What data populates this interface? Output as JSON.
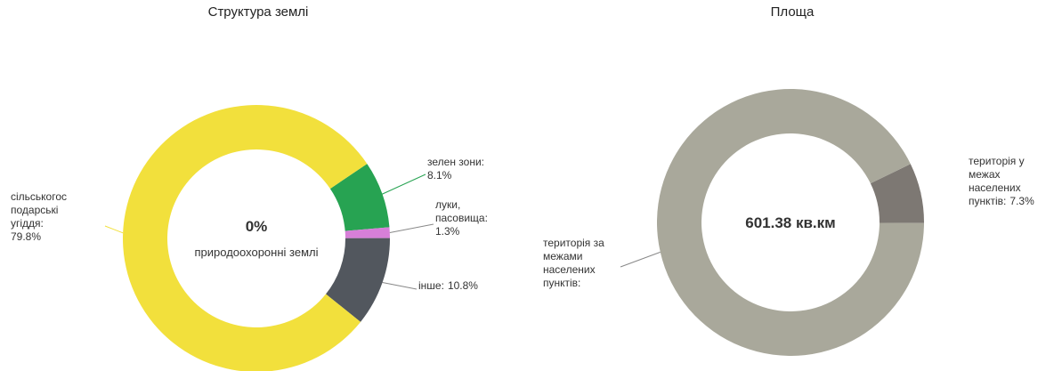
{
  "chart_data": [
    {
      "type": "donut",
      "title": "Структура землі",
      "categories": [
        [
          "зелен зони:"
        ],
        [
          "луки,",
          "пасовища:"
        ],
        [
          "інше:"
        ],
        [
          "сільськогос",
          "подарські",
          "угіддя:"
        ],
        [
          "природоохоронні землі"
        ]
      ],
      "values": [
        8.1,
        1.3,
        10.8,
        79.8,
        0
      ],
      "value_labels": [
        "8.1%",
        "1.3%",
        "10.8%",
        "79.8%",
        "0%"
      ],
      "colors": [
        "#27a352",
        "#d77fd8",
        "#52575e",
        "#f2e03c",
        "#9acd32"
      ]
    },
    {
      "type": "donut",
      "title": "Площа",
      "center_text": "601.38 кв.км",
      "categories": [
        [
          "територія у",
          "межах",
          "населених",
          "пунктів:"
        ],
        [
          "територія за",
          "межами",
          "населених",
          "пунктів:"
        ]
      ],
      "values": [
        7.3,
        92.7
      ],
      "value_labels": [
        "7.3%",
        null
      ],
      "colors": [
        "#7d7873",
        "#a9a89b"
      ]
    }
  ]
}
